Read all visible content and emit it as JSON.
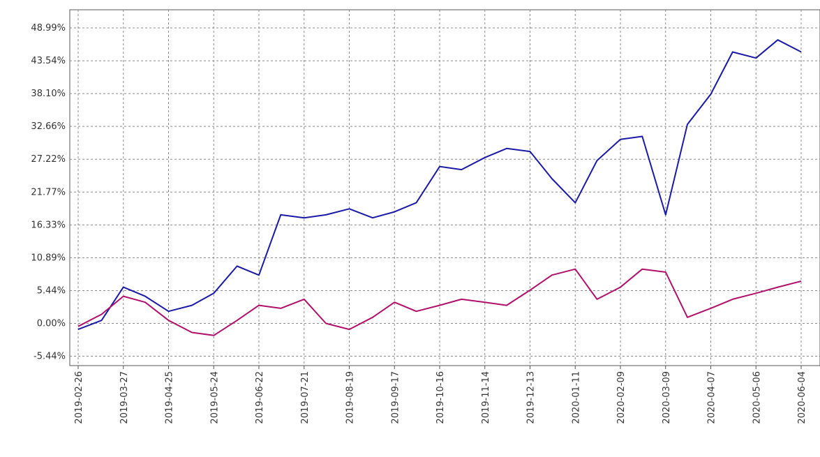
{
  "chart_data": {
    "type": "line",
    "title": "",
    "xlabel": "",
    "ylabel": "",
    "ylim": [
      -7.0,
      52.0
    ],
    "grid": true,
    "y_ticks": [
      "48.99%",
      "43.54%",
      "38.10%",
      "32.66%",
      "27.22%",
      "21.77%",
      "16.33%",
      "10.89%",
      "5.44%",
      "0.00%",
      "-5.44%"
    ],
    "y_tick_values": [
      48.99,
      43.54,
      38.1,
      32.66,
      27.22,
      21.77,
      16.33,
      10.89,
      5.44,
      0.0,
      -5.44
    ],
    "x_ticks": [
      "2019-02-26",
      "2019-03-27",
      "2019-04-25",
      "2019-05-24",
      "2019-06-22",
      "2019-07-21",
      "2019-08-19",
      "2019-09-17",
      "2019-10-16",
      "2019-11-14",
      "2019-12-13",
      "2020-01-11",
      "2020-02-09",
      "2020-03-09",
      "2020-04-07",
      "2020-05-06",
      "2020-06-04"
    ],
    "series": [
      {
        "color": "#1a1aa6",
        "x": [
          "2019-02-26",
          "2019-03-13",
          "2019-03-27",
          "2019-04-10",
          "2019-04-25",
          "2019-05-10",
          "2019-05-24",
          "2019-06-08",
          "2019-06-22",
          "2019-07-06",
          "2019-07-21",
          "2019-08-04",
          "2019-08-19",
          "2019-09-03",
          "2019-09-17",
          "2019-10-01",
          "2019-10-16",
          "2019-10-30",
          "2019-11-14",
          "2019-11-28",
          "2019-12-13",
          "2019-12-27",
          "2020-01-11",
          "2020-01-25",
          "2020-02-09",
          "2020-02-23",
          "2020-03-09",
          "2020-03-23",
          "2020-04-07",
          "2020-04-21",
          "2020-05-06",
          "2020-05-20",
          "2020-06-04"
        ],
        "values": [
          -1.0,
          0.5,
          6.0,
          4.5,
          2.0,
          3.0,
          5.0,
          9.5,
          8.0,
          18.0,
          17.5,
          18.0,
          19.0,
          17.5,
          18.5,
          20.0,
          26.0,
          25.5,
          27.5,
          29.0,
          28.5,
          24.0,
          20.0,
          27.0,
          30.5,
          31.0,
          18.0,
          33.0,
          38.0,
          45.0,
          44.0,
          47.0,
          45.0
        ]
      },
      {
        "color": "#b0106a",
        "x": [
          "2019-02-26",
          "2019-03-13",
          "2019-03-27",
          "2019-04-10",
          "2019-04-25",
          "2019-05-10",
          "2019-05-24",
          "2019-06-08",
          "2019-06-22",
          "2019-07-06",
          "2019-07-21",
          "2019-08-04",
          "2019-08-19",
          "2019-09-03",
          "2019-09-17",
          "2019-10-01",
          "2019-10-16",
          "2019-10-30",
          "2019-11-14",
          "2019-11-28",
          "2019-12-13",
          "2019-12-27",
          "2020-01-11",
          "2020-01-25",
          "2020-02-09",
          "2020-02-23",
          "2020-03-09",
          "2020-03-23",
          "2020-04-07",
          "2020-04-21",
          "2020-05-06",
          "2020-05-20",
          "2020-06-04"
        ],
        "values": [
          -0.5,
          1.5,
          4.5,
          3.5,
          0.5,
          -1.5,
          -2.0,
          0.5,
          3.0,
          2.5,
          4.0,
          0.0,
          -1.0,
          1.0,
          3.5,
          2.0,
          3.0,
          4.0,
          3.5,
          3.0,
          5.5,
          8.0,
          9.0,
          4.0,
          6.0,
          9.0,
          8.5,
          1.0,
          2.5,
          4.0,
          5.0,
          6.0,
          7.0
        ]
      }
    ]
  }
}
